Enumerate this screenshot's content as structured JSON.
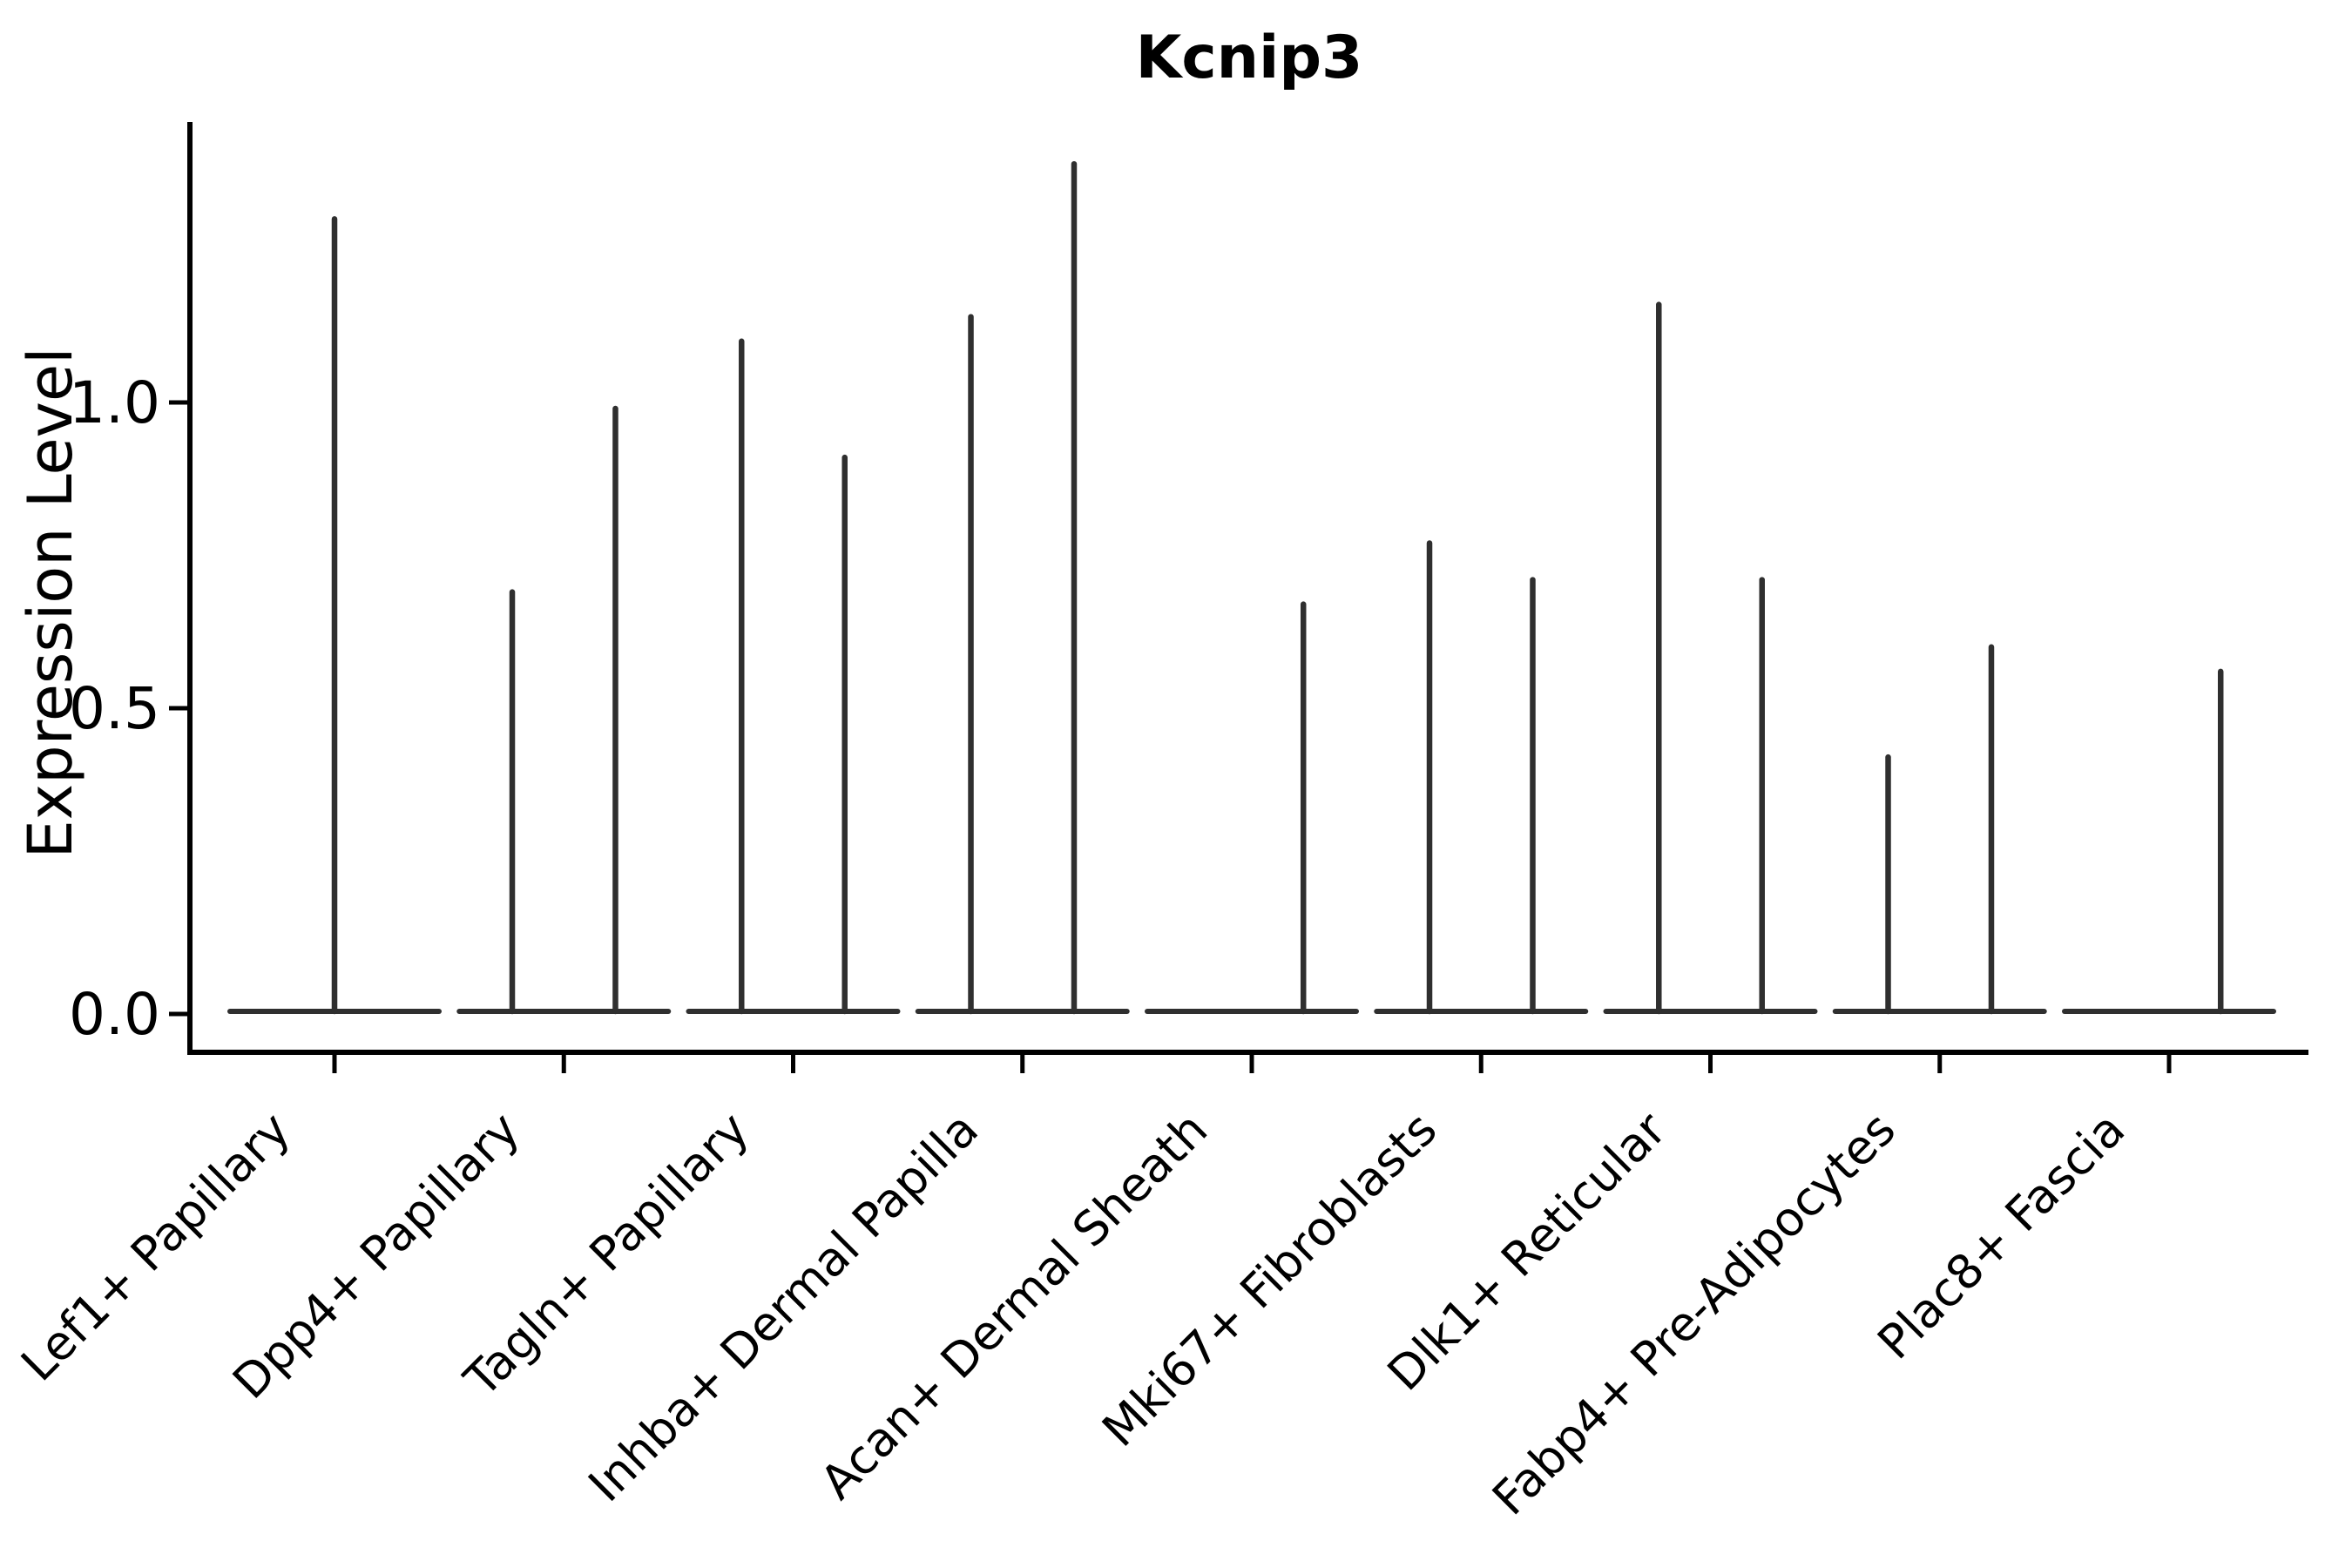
{
  "chart_data": {
    "type": "violin",
    "title": "Kcnip3",
    "ylabel": "Expression Level",
    "xlabel": "",
    "grid": false,
    "legend": "none",
    "ylim": [
      -0.115,
      1.46
    ],
    "yticks": [
      {
        "label": "0.0",
        "value": 0.0
      },
      {
        "label": "0.5",
        "value": 0.5
      },
      {
        "label": "1.0",
        "value": 1.0
      }
    ],
    "baseline_value": 0.0,
    "categories": [
      "Lef1+ Papillary",
      "Dpp4+ Papillary",
      "Tagln+ Papillary",
      "Inhba+ Dermal Papilla",
      "Acan+ Dermal Sheath",
      "Mki67+ Fibroblasts",
      "Dlk1+ Reticular",
      "Fabp4+ Pre-Adipocytes",
      "Plac8+ Fascia"
    ],
    "violins": [
      {
        "category": "Lef1+ Papillary",
        "spikes": [
          {
            "offset": 0.0,
            "max_expression": 1.3
          }
        ]
      },
      {
        "category": "Dpp4+ Papillary",
        "spikes": [
          {
            "offset": -0.225,
            "max_expression": 0.69
          },
          {
            "offset": 0.225,
            "max_expression": 0.99
          }
        ]
      },
      {
        "category": "Tagln+ Papillary",
        "spikes": [
          {
            "offset": -0.225,
            "max_expression": 1.1
          },
          {
            "offset": 0.225,
            "max_expression": 0.91
          }
        ]
      },
      {
        "category": "Inhba+ Dermal Papilla",
        "spikes": [
          {
            "offset": -0.225,
            "max_expression": 1.14
          },
          {
            "offset": 0.225,
            "max_expression": 1.39
          }
        ]
      },
      {
        "category": "Acan+ Dermal Sheath",
        "spikes": [
          {
            "offset": 0.225,
            "max_expression": 0.67
          }
        ]
      },
      {
        "category": "Mki67+ Fibroblasts",
        "spikes": [
          {
            "offset": -0.225,
            "max_expression": 0.77
          },
          {
            "offset": 0.225,
            "max_expression": 0.71
          }
        ]
      },
      {
        "category": "Dlk1+ Reticular",
        "spikes": [
          {
            "offset": -0.225,
            "max_expression": 1.16
          },
          {
            "offset": 0.225,
            "max_expression": 0.71
          }
        ]
      },
      {
        "category": "Fabp4+ Pre-Adipocytes",
        "spikes": [
          {
            "offset": -0.225,
            "max_expression": 0.42
          },
          {
            "offset": 0.225,
            "max_expression": 0.6
          }
        ]
      },
      {
        "category": "Plac8+ Fascia",
        "spikes": [
          {
            "offset": 0.225,
            "max_expression": 0.56
          }
        ]
      }
    ],
    "colors": {
      "violin_stroke": "#2f2f2f",
      "axis": "#000000",
      "text": "#000000",
      "background": "#ffffff"
    }
  }
}
